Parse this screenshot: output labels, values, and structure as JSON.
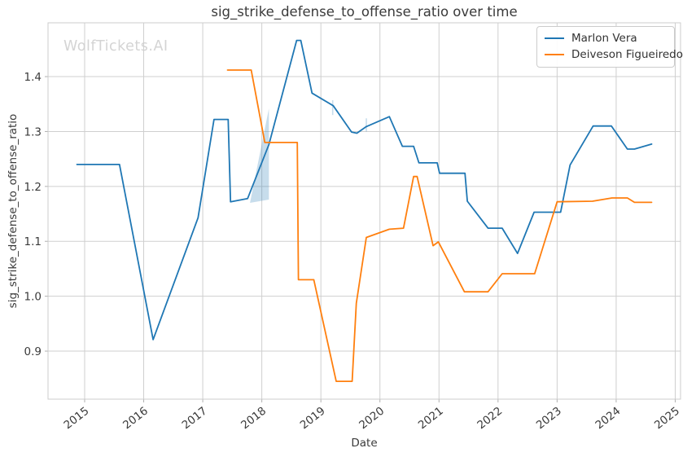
{
  "watermark": "WolfTickets.AI",
  "colors": {
    "series_blue": "#1f77b4",
    "series_orange": "#ff7f0e",
    "confidence_band": "rgba(31,119,180,0.25)",
    "grid": "#cfcfcf",
    "spine": "#cccccc",
    "text": "#3a3a3a",
    "watermark": "#d4d4d4"
  },
  "chart_data": {
    "type": "line",
    "title": "sig_strike_defense_to_offense_ratio over time",
    "xlabel": "Date",
    "ylabel": "sig_strike_defense_to_offense_ratio",
    "grid": true,
    "legend_position": "upper right",
    "x_ticks": [
      2015,
      2016,
      2017,
      2018,
      2019,
      2020,
      2021,
      2022,
      2023,
      2024,
      2025
    ],
    "y_ticks": [
      1.4,
      1.3,
      1.2,
      1.1,
      1.0,
      0.9
    ],
    "xlim": [
      2014.38,
      2025.09
    ],
    "ylim": [
      0.8125,
      1.498
    ],
    "series": [
      {
        "name": "Marlon Vera",
        "color": "#1f77b4",
        "points": [
          [
            2014.87,
            1.24
          ],
          [
            2015.59,
            1.24
          ],
          [
            2016.16,
            0.921
          ],
          [
            2016.92,
            1.143
          ],
          [
            2017.19,
            1.322
          ],
          [
            2017.43,
            1.322
          ],
          [
            2017.47,
            1.172
          ],
          [
            2017.76,
            1.178
          ],
          [
            2018.12,
            1.276
          ],
          [
            2018.59,
            1.466
          ],
          [
            2018.66,
            1.466
          ],
          [
            2018.85,
            1.37
          ],
          [
            2019.21,
            1.347
          ],
          [
            2019.52,
            1.299
          ],
          [
            2019.61,
            1.297
          ],
          [
            2019.77,
            1.309
          ],
          [
            2020.16,
            1.327
          ],
          [
            2020.38,
            1.273
          ],
          [
            2020.57,
            1.273
          ],
          [
            2020.66,
            1.243
          ],
          [
            2020.97,
            1.243
          ],
          [
            2021.01,
            1.224
          ],
          [
            2021.44,
            1.224
          ],
          [
            2021.48,
            1.173
          ],
          [
            2021.83,
            1.124
          ],
          [
            2022.07,
            1.124
          ],
          [
            2022.33,
            1.078
          ],
          [
            2022.61,
            1.153
          ],
          [
            2023.06,
            1.153
          ],
          [
            2023.22,
            1.239
          ],
          [
            2023.61,
            1.31
          ],
          [
            2023.92,
            1.31
          ],
          [
            2024.19,
            1.268
          ],
          [
            2024.31,
            1.268
          ],
          [
            2024.6,
            1.277
          ]
        ]
      },
      {
        "name": "Deiveson Figueiredo",
        "color": "#ff7f0e",
        "points": [
          [
            2017.42,
            1.412
          ],
          [
            2017.82,
            1.412
          ],
          [
            2018.05,
            1.28
          ],
          [
            2018.6,
            1.28
          ],
          [
            2018.62,
            1.03
          ],
          [
            2018.88,
            1.03
          ],
          [
            2019.26,
            0.845
          ],
          [
            2019.53,
            0.845
          ],
          [
            2019.6,
            0.987
          ],
          [
            2019.77,
            1.107
          ],
          [
            2020.16,
            1.122
          ],
          [
            2020.4,
            1.124
          ],
          [
            2020.57,
            1.218
          ],
          [
            2020.63,
            1.218
          ],
          [
            2020.9,
            1.092
          ],
          [
            2020.99,
            1.099
          ],
          [
            2021.43,
            1.008
          ],
          [
            2021.83,
            1.008
          ],
          [
            2022.07,
            1.041
          ],
          [
            2022.62,
            1.041
          ],
          [
            2023.0,
            1.172
          ],
          [
            2023.6,
            1.173
          ],
          [
            2023.93,
            1.179
          ],
          [
            2024.19,
            1.179
          ],
          [
            2024.31,
            1.171
          ],
          [
            2024.6,
            1.171
          ]
        ]
      }
    ],
    "uncertainty": {
      "series": "Marlon Vera",
      "color": "rgba(31,119,180,0.25)",
      "band_polygon": [
        [
          2017.8,
          1.17
        ],
        [
          2018.12,
          1.342
        ],
        [
          2018.12,
          1.176
        ]
      ],
      "vertical_ticks": [
        {
          "x": 2019.2,
          "y0": 1.33,
          "y1": 1.357
        },
        {
          "x": 2019.77,
          "y0": 1.3,
          "y1": 1.324
        }
      ]
    }
  }
}
